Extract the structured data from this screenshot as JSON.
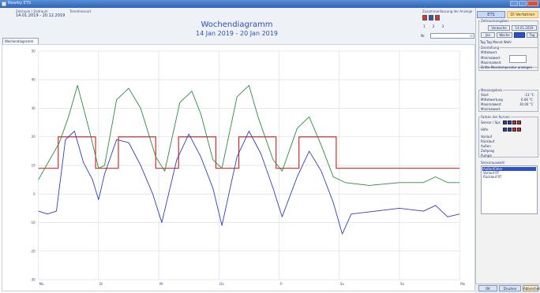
{
  "window": {
    "title": "Nearby ETS",
    "min_label": "",
    "max_label": "",
    "close_label": ""
  },
  "header": {
    "zeitraum_label": "Zeitraum / Zeitraum",
    "zeitraum_value": "14.01.2019 - 20.12.2019",
    "trend_label": "Trendmessart",
    "selection_label": "Zusammenfassung der Anzeige",
    "selection_numbers": "1 2 3",
    "nr_label": "Nr.",
    "tab_label": "Wochendiagramm"
  },
  "chart_data": {
    "type": "line",
    "title": "Wochendiagramm",
    "subtitle": "14 Jan 2019 - 20 Jan 2019",
    "ylim": [
      -30,
      50
    ],
    "yticks": [
      "50",
      "40",
      "30",
      "20",
      "10",
      "0",
      "-10",
      "-20",
      "-30"
    ],
    "xlim": [
      0,
      7
    ],
    "xticks": [
      "Mo",
      "Di",
      "Mi",
      "Do",
      "Fr",
      "Sa",
      "So",
      "Mo"
    ],
    "grid": true,
    "series": [
      {
        "color": "#d42a2a",
        "x": [
          0,
          0.33,
          0.33,
          0.95,
          0.95,
          1.33,
          1.33,
          1.95,
          1.95,
          2.33,
          2.33,
          2.95,
          2.95,
          3.33,
          3.33,
          3.95,
          3.95,
          4.33,
          4.33,
          4.95,
          4.95,
          7
        ],
        "values": [
          9,
          9,
          20,
          20,
          9,
          9,
          20,
          20,
          9,
          9,
          20,
          20,
          9,
          9,
          20,
          20,
          9,
          9,
          20,
          20,
          9,
          9
        ]
      },
      {
        "color": "#2c8a3c",
        "x": [
          0,
          0.35,
          0.5,
          0.65,
          0.85,
          1.0,
          1.1,
          1.3,
          1.5,
          1.7,
          1.95,
          2.1,
          2.35,
          2.55,
          2.7,
          2.9,
          3.05,
          3.3,
          3.5,
          3.65,
          3.9,
          4.05,
          4.3,
          4.5,
          4.7,
          4.9,
          5.1,
          5.5,
          6.0,
          6.4,
          6.6,
          6.8,
          7.0
        ],
        "values": [
          5,
          18,
          27,
          38,
          22,
          9,
          10,
          33,
          37,
          30,
          13,
          8,
          32,
          36,
          28,
          12,
          9,
          34,
          38,
          27,
          12,
          8,
          23,
          27,
          17,
          6,
          4,
          3,
          4,
          4,
          6,
          4,
          4
        ]
      },
      {
        "color": "#2b3fb8",
        "x": [
          0,
          0.15,
          0.3,
          0.45,
          0.6,
          0.75,
          0.9,
          1.0,
          1.1,
          1.3,
          1.5,
          1.7,
          1.9,
          2.05,
          2.3,
          2.5,
          2.7,
          2.9,
          3.05,
          3.3,
          3.5,
          3.7,
          3.9,
          4.05,
          4.3,
          4.5,
          4.7,
          4.9,
          5.05,
          5.2,
          5.6,
          6.0,
          6.4,
          6.6,
          6.8,
          7.0
        ],
        "values": [
          -6,
          -7,
          -6,
          19,
          22,
          11,
          5,
          -2,
          7,
          19,
          18,
          10,
          0,
          -10,
          12,
          21,
          13,
          2,
          -11,
          13,
          22,
          14,
          2,
          -8,
          6,
          15,
          8,
          -3,
          -14,
          -7,
          -6,
          -5,
          -6,
          -4,
          -8,
          -7
        ]
      }
    ]
  },
  "right_panel": {
    "tab_active": "ETS Verfahren",
    "tab_other": "DI Verfahren",
    "group_period": "Zeitraumangaben",
    "btn_vorwoche": "Vorwoche",
    "btn_datum": "14.01.2019",
    "btn_left": "Jan",
    "btn_mid": "Woche",
    "btn_blue": "",
    "btn_right": "Tag",
    "radio_row": "Tag   Tag   Monat   Wahl",
    "group_display": "Darstellung",
    "mittelwert_label": "Mittelwert",
    "minimum_label": "Minimalwert",
    "maximum_label": "Maximalwert",
    "check_label": "Dritte Messtemperatur anzeigen",
    "group_temp": "Messergebnis",
    "temp_row1_label": "Start",
    "temp_row1_value": "-13 °C",
    "temp_row2_label": "Mittelwertung",
    "temp_row2_value": "6.06 °C",
    "temp_row3_label": "Maximalwert",
    "temp_row3_value": "30.00 °C",
    "temp_row4_label": "Minimalwert",
    "group_colors": "Farben der Kurven",
    "legend_rows": [
      "Sensor / Sps",
      "Hilfe",
      "Vorlauf",
      "Rücklauf",
      "Außen",
      "Zeitprog",
      "Pumpe"
    ],
    "group_sensors": "Sensorauswahl",
    "sensor_items": [
      "Außenfühler",
      "Vorlauf RT",
      "Rücklauf RT"
    ],
    "btn_ok": "OK",
    "btn_drucken": "Drucken",
    "btn_abbrechen": "Abbrechen"
  }
}
